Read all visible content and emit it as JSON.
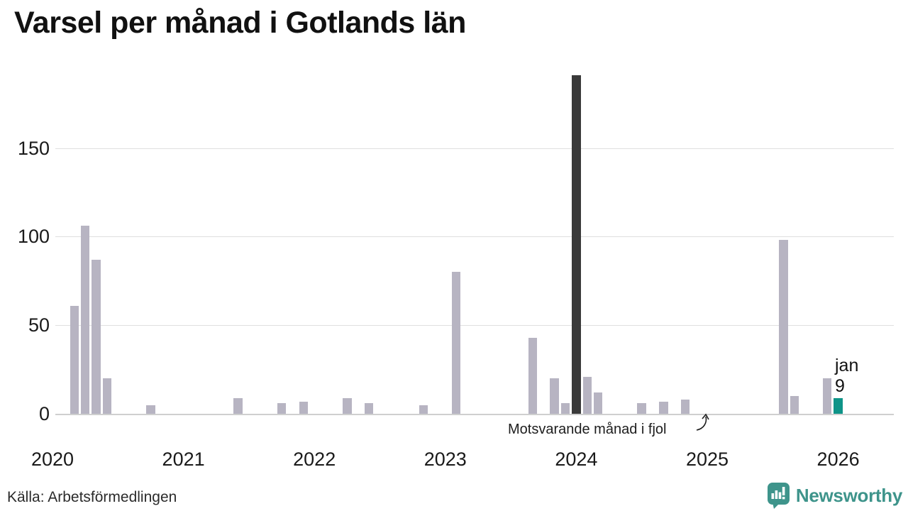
{
  "title": "Varsel per månad i Gotlands län",
  "footer": {
    "source": "Källa: Arbetsförmedlingen"
  },
  "branding": {
    "name": "Newsworthy"
  },
  "annotation": {
    "text": "Motsvarande månad i fjol",
    "points_to_month": "2025-01"
  },
  "latest_point_label": {
    "line1": "jan",
    "line2": "9"
  },
  "colors": {
    "bar_default": "#b7b4c2",
    "bar_highlight_dark": "#3a3a3a",
    "bar_latest": "#0e9488",
    "gridline": "#dfdfdf",
    "axis_line": "#cfcfcf",
    "text_primary": "#111111",
    "brand_teal": "#3e948b"
  },
  "chart_data": {
    "type": "bar",
    "title": "Varsel per månad i Gotlands län",
    "xlabel": "",
    "ylabel": "",
    "x_tick_labels": [
      "2020",
      "2021",
      "2022",
      "2023",
      "2024",
      "2025",
      "2026"
    ],
    "y_ticks": [
      0,
      50,
      100,
      150
    ],
    "ylim": [
      0,
      192
    ],
    "grid": "horizontal",
    "legend": "none",
    "points": [
      {
        "month": "2020-03",
        "value": 61,
        "role": "default"
      },
      {
        "month": "2020-04",
        "value": 106,
        "role": "default"
      },
      {
        "month": "2020-05",
        "value": 87,
        "role": "default"
      },
      {
        "month": "2020-06",
        "value": 20,
        "role": "default"
      },
      {
        "month": "2020-10",
        "value": 5,
        "role": "default"
      },
      {
        "month": "2021-06",
        "value": 9,
        "role": "default"
      },
      {
        "month": "2021-10",
        "value": 6,
        "role": "default"
      },
      {
        "month": "2021-12",
        "value": 7,
        "role": "default"
      },
      {
        "month": "2022-04",
        "value": 9,
        "role": "default"
      },
      {
        "month": "2022-06",
        "value": 6,
        "role": "default"
      },
      {
        "month": "2022-11",
        "value": 5,
        "role": "default"
      },
      {
        "month": "2023-02",
        "value": 80,
        "role": "default"
      },
      {
        "month": "2023-09",
        "value": 43,
        "role": "default"
      },
      {
        "month": "2023-11",
        "value": 20,
        "role": "default"
      },
      {
        "month": "2023-12",
        "value": 6,
        "role": "default"
      },
      {
        "month": "2024-01",
        "value": 191,
        "role": "highlight_dark"
      },
      {
        "month": "2024-02",
        "value": 21,
        "role": "default"
      },
      {
        "month": "2024-03",
        "value": 12,
        "role": "default"
      },
      {
        "month": "2024-07",
        "value": 6,
        "role": "default"
      },
      {
        "month": "2024-09",
        "value": 7,
        "role": "default"
      },
      {
        "month": "2024-11",
        "value": 8,
        "role": "default"
      },
      {
        "month": "2025-08",
        "value": 98,
        "role": "default"
      },
      {
        "month": "2025-09",
        "value": 10,
        "role": "default"
      },
      {
        "month": "2025-12",
        "value": 20,
        "role": "default"
      },
      {
        "month": "2026-01",
        "value": 9,
        "role": "latest"
      }
    ]
  }
}
